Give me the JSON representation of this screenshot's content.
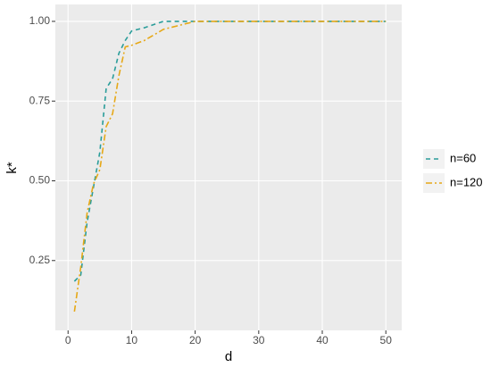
{
  "chart_data": {
    "type": "line",
    "x": [
      1,
      2,
      3,
      4,
      5,
      6,
      7,
      8,
      9,
      10,
      12,
      15,
      18,
      20,
      25,
      30,
      35,
      40,
      45,
      50
    ],
    "series": [
      {
        "name": "n=60",
        "color": "#2a9d9a",
        "dash": "5,4",
        "values": [
          0.185,
          0.205,
          0.37,
          0.48,
          0.59,
          0.79,
          0.82,
          0.9,
          0.94,
          0.97,
          0.98,
          1,
          1,
          1,
          1,
          1,
          1,
          1,
          1,
          1
        ]
      },
      {
        "name": "n=120",
        "color": "#e6a817",
        "dash": "7,3,2,3",
        "values": [
          0.09,
          0.23,
          0.4,
          0.49,
          0.535,
          0.67,
          0.71,
          0.83,
          0.92,
          0.925,
          0.94,
          0.975,
          0.99,
          1,
          1,
          1,
          1,
          1,
          1,
          1
        ]
      }
    ],
    "xlabel": "d",
    "ylabel": "k*",
    "xlim": [
      -2,
      52.5
    ],
    "ylim": [
      0.031,
      1.053
    ],
    "xticks": [
      0,
      10,
      20,
      30,
      40,
      50
    ],
    "yticks": [
      {
        "value": 0.25,
        "label": "0.25"
      },
      {
        "value": 0.5,
        "label": "0.50"
      },
      {
        "value": 0.75,
        "label": "0.75"
      },
      {
        "value": 1,
        "label": "1.00"
      }
    ],
    "grid": true,
    "legend": "right"
  }
}
